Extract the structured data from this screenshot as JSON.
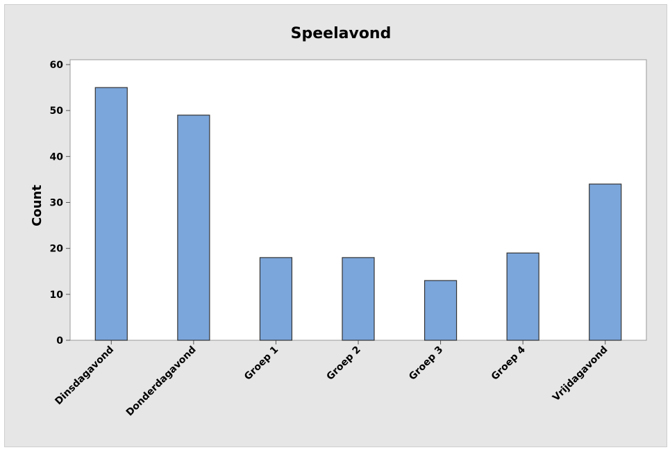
{
  "chart_data": {
    "type": "bar",
    "title": "Speelavond",
    "xlabel": "",
    "ylabel": "Count",
    "ylim": [
      0,
      60
    ],
    "yticks": [
      0,
      10,
      20,
      30,
      40,
      50,
      60
    ],
    "categories": [
      "Dinsdagavond",
      "Donderdagavond",
      "Groep 1",
      "Groep 2",
      "Groep 3",
      "Groep 4",
      "Vrijdagavond"
    ],
    "values": [
      55,
      49,
      18,
      18,
      13,
      19,
      34
    ],
    "colors": {
      "bar_fill": "#7ba6db",
      "bar_stroke": "#333333",
      "plot_background": "#ffffff",
      "figure_background": "#e6e6e6"
    },
    "grid": false
  }
}
